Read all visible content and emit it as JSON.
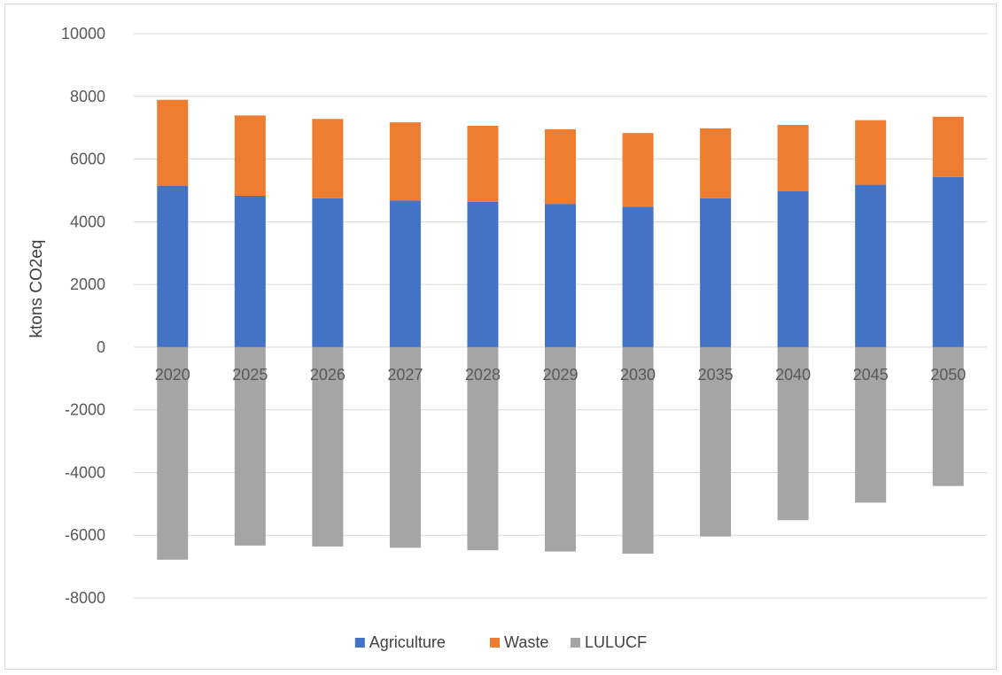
{
  "chart_data": {
    "type": "bar",
    "stacked": true,
    "categories": [
      "2020",
      "2025",
      "2026",
      "2027",
      "2028",
      "2029",
      "2030",
      "2035",
      "2040",
      "2045",
      "2050"
    ],
    "series": [
      {
        "name": "Agriculture",
        "color": "#4472c4",
        "values": [
          5150,
          4830,
          4750,
          4680,
          4640,
          4570,
          4480,
          4750,
          4970,
          5180,
          5430
        ]
      },
      {
        "name": "Waste",
        "color": "#ed7d31",
        "values": [
          2740,
          2560,
          2530,
          2490,
          2420,
          2380,
          2350,
          2230,
          2120,
          2060,
          1920
        ]
      },
      {
        "name": "LULUCF",
        "color": "#a5a5a5",
        "values": [
          -6780,
          -6330,
          -6360,
          -6400,
          -6480,
          -6520,
          -6590,
          -6040,
          -5520,
          -4960,
          -4430
        ]
      }
    ],
    "title": "",
    "xlabel": "",
    "ylabel": "ktons CO2eq",
    "ylim": [
      -8000,
      10000
    ],
    "yticks": [
      "10000",
      "8000",
      "6000",
      "4000",
      "2000",
      "0",
      "-2000",
      "-4000",
      "-6000",
      "-8000"
    ],
    "grid": true,
    "legend_position": "bottom"
  }
}
